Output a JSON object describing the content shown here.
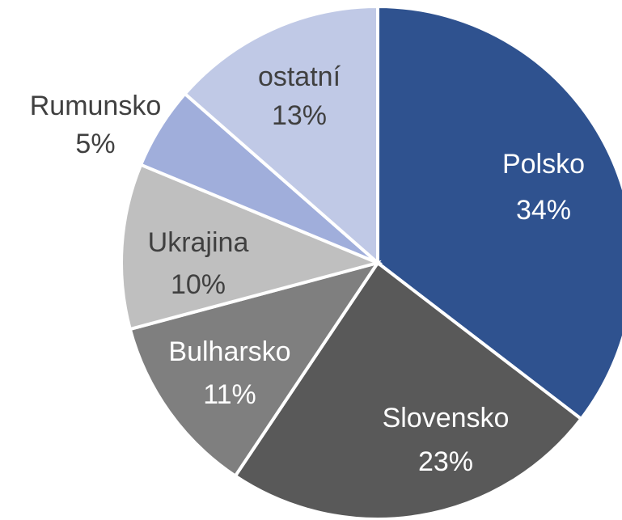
{
  "chart_data": {
    "type": "pie",
    "categories": [
      "Polsko",
      "Slovensko",
      "Bulharsko",
      "Ukrajina",
      "Rumunsko",
      "ostatní"
    ],
    "values": [
      34,
      23,
      11,
      10,
      5,
      13
    ],
    "value_labels": [
      "34%",
      "23%",
      "11%",
      "10%",
      "5%",
      "13%"
    ],
    "colors": [
      "#2f528f",
      "#595959",
      "#7f7f7f",
      "#bfbfbf",
      "#a0aedb",
      "#c0c9e6"
    ]
  }
}
